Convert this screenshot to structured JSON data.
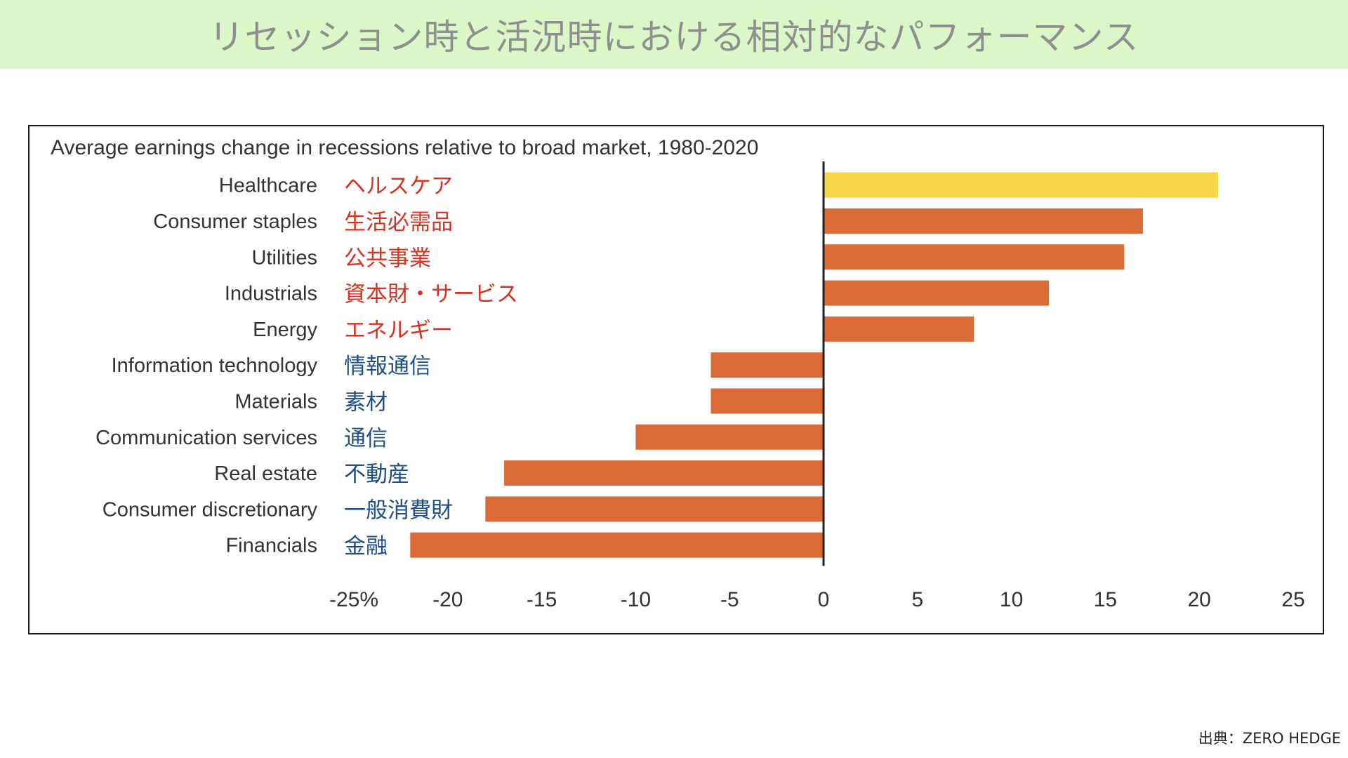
{
  "banner": {
    "title": "リセッション時と活況時における相対的なパフォーマンス"
  },
  "source": {
    "text": "出典：ZERO HEDGE"
  },
  "chart_data": {
    "type": "bar",
    "orientation": "horizontal",
    "title": "Average earnings change in recessions relative to broad market, 1980-2020",
    "categories": [
      "Healthcare",
      "Consumer staples",
      "Utilities",
      "Industrials",
      "Energy",
      "Information technology",
      "Materials",
      "Communication services",
      "Real estate",
      "Consumer discretionary",
      "Financials"
    ],
    "categories_ja": [
      "ヘルスケア",
      "生活必需品",
      "公共事業",
      "資本財・サービス",
      "エネルギー",
      "情報通信",
      "素材",
      "通信",
      "不動産",
      "一般消費財",
      "金融"
    ],
    "values": [
      21,
      17,
      16,
      12,
      8,
      -6,
      -6,
      -10,
      -17,
      -18,
      -22
    ],
    "highlight_index": 0,
    "xlim": [
      -25,
      25
    ],
    "xticks": [
      -25,
      -20,
      -15,
      -10,
      -5,
      0,
      5,
      10,
      15,
      20,
      25
    ],
    "xtick_labels": [
      "-25%",
      "-20",
      "-15",
      "-10",
      "-5",
      "0",
      "5",
      "10",
      "15",
      "20",
      "25"
    ],
    "xlabel": "",
    "ylabel": "",
    "grid": false,
    "colors": {
      "bar": "#db6a37",
      "highlight": "#f7d64a",
      "label_positive": "#d8311f",
      "label_negative": "#1d4e89",
      "axis": "#222222",
      "text": "#333333"
    }
  }
}
